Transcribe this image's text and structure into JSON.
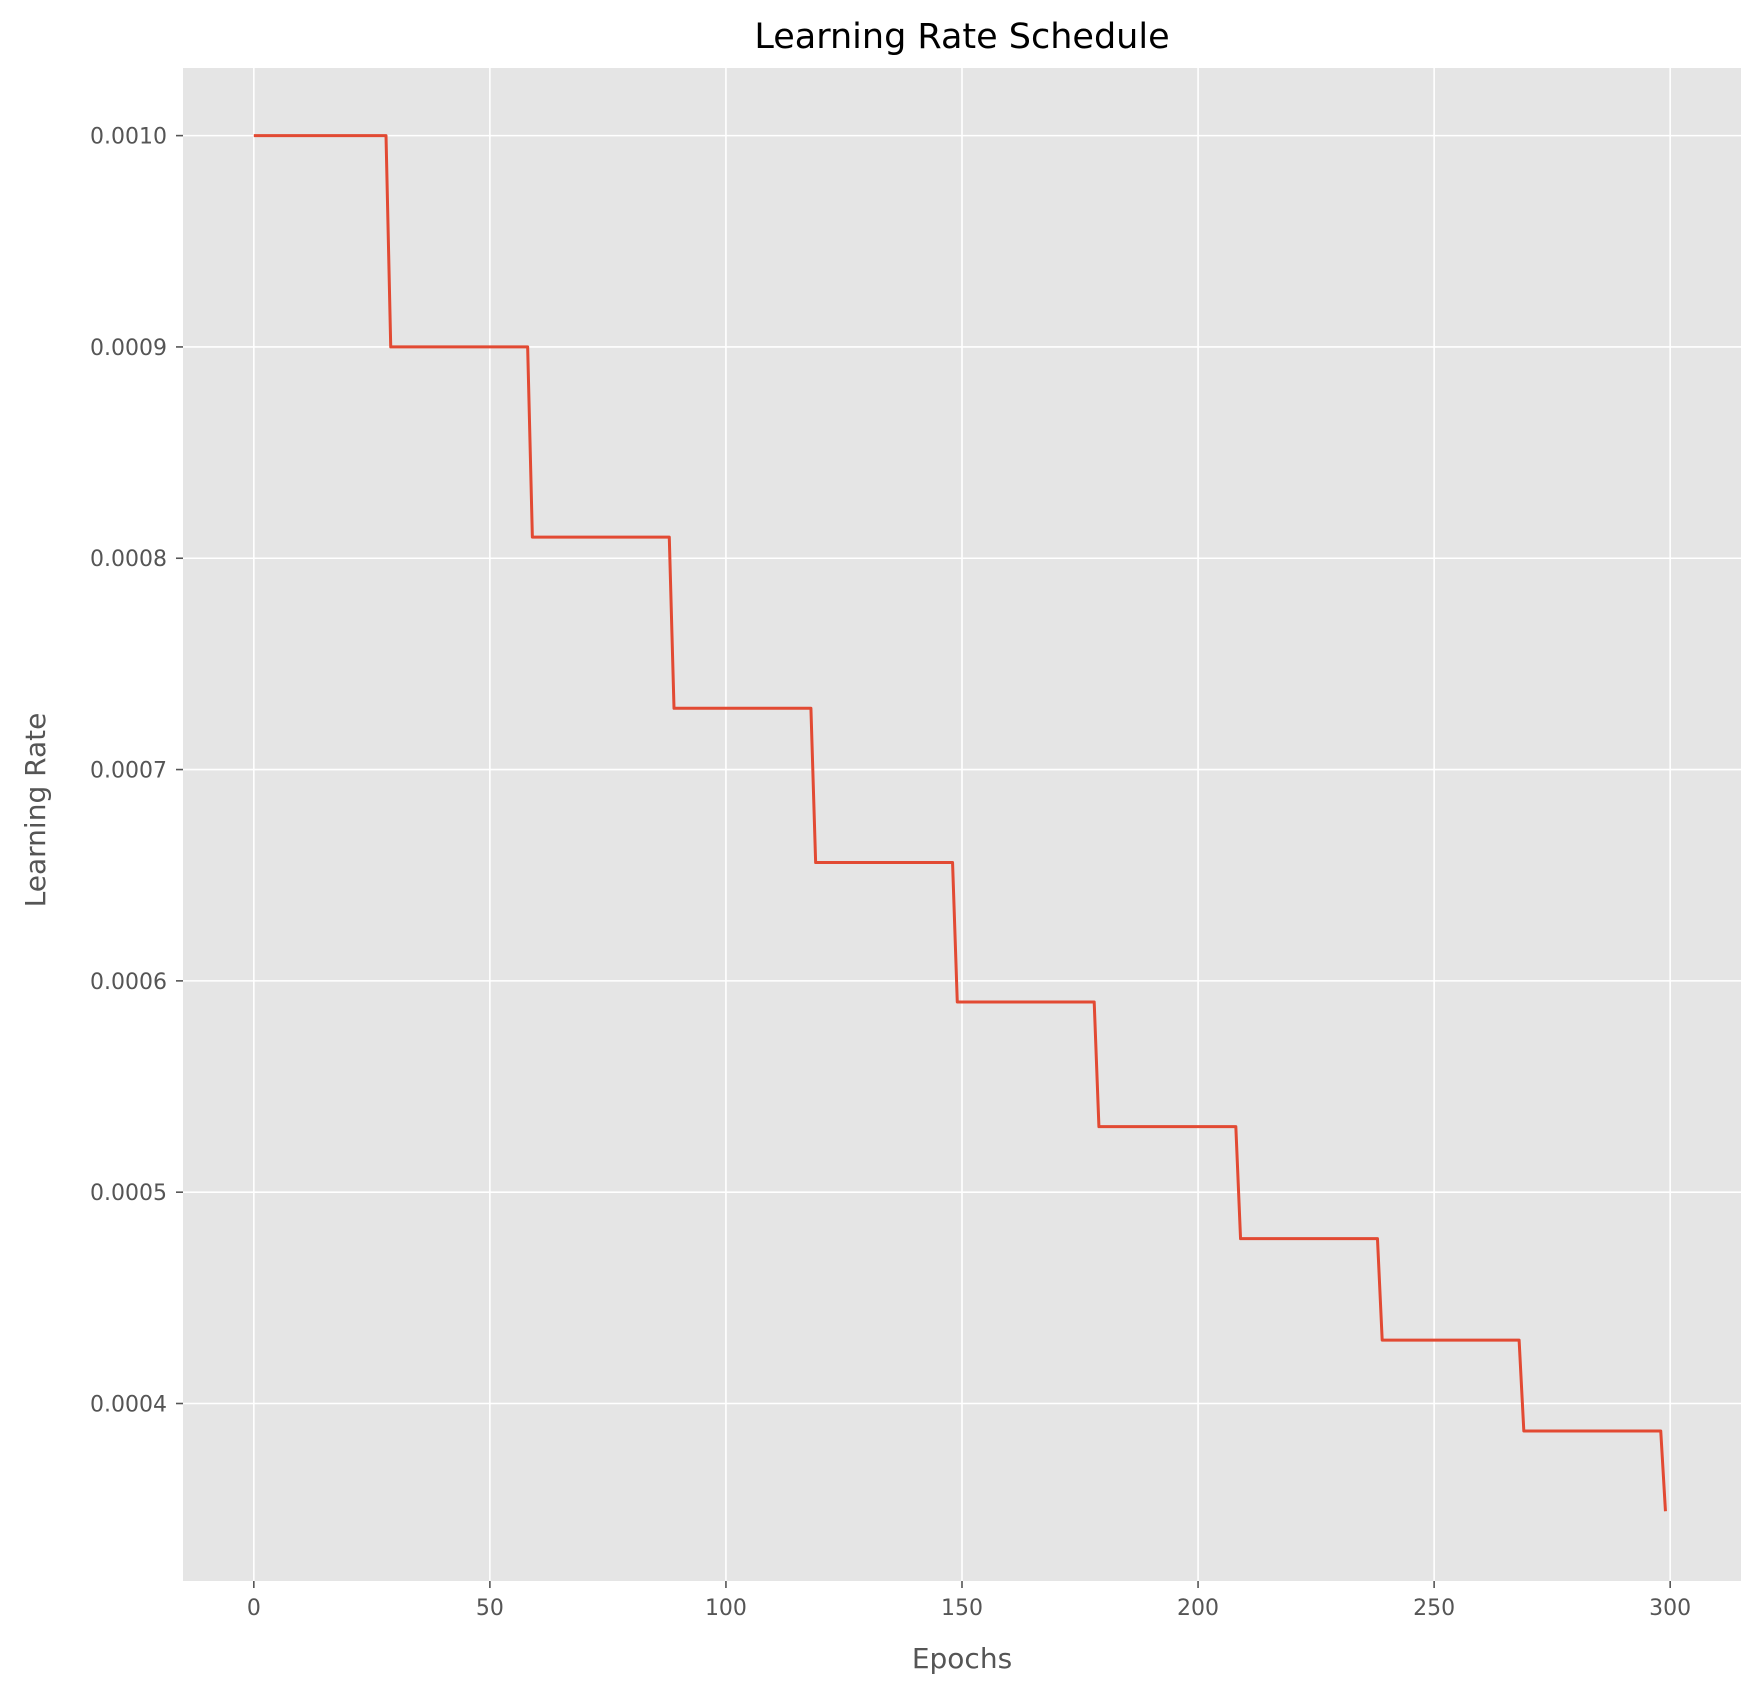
{
  "chart_data": {
    "type": "line",
    "title": "Learning Rate Schedule",
    "xlabel": "Epochs",
    "ylabel": "Learning Rate",
    "xlim": [
      -15,
      315
    ],
    "ylim": [
      0.000316,
      0.001032
    ],
    "xticks": [
      0,
      50,
      100,
      150,
      200,
      250,
      300
    ],
    "xtick_labels": [
      "0",
      "50",
      "100",
      "150",
      "200",
      "250",
      "300"
    ],
    "yticks": [
      0.0004,
      0.0005,
      0.0006,
      0.0007,
      0.0008,
      0.0009,
      0.001
    ],
    "ytick_labels": [
      "0.0004",
      "0.0005",
      "0.0006",
      "0.0007",
      "0.0008",
      "0.0009",
      "0.0010"
    ],
    "grid": true,
    "background_color": "#e5e5e5",
    "grid_color": "#ffffff",
    "series": [
      {
        "color": "#e24a33",
        "step_size_epochs": 30,
        "decay_factor": 0.9,
        "x": [
          0,
          28,
          29,
          58,
          59,
          88,
          89,
          118,
          119,
          148,
          149,
          178,
          179,
          208,
          209,
          238,
          239,
          268,
          269,
          298,
          299
        ],
        "y": [
          0.001,
          0.001,
          0.0009,
          0.0009,
          0.00081,
          0.00081,
          0.000729,
          0.000729,
          0.000656,
          0.000656,
          0.00059,
          0.00059,
          0.000531,
          0.000531,
          0.000478,
          0.000478,
          0.00043,
          0.00043,
          0.000387,
          0.000387,
          0.000349
        ]
      }
    ]
  }
}
